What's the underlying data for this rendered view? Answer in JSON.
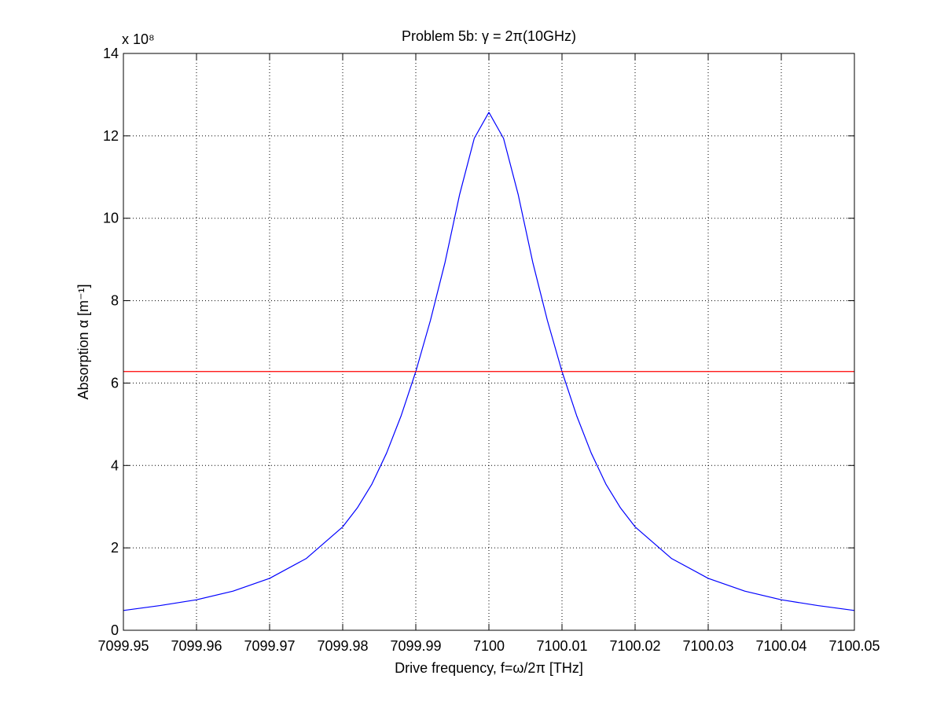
{
  "chart_data": {
    "type": "line",
    "title": "Problem 5b: γ = 2π(10GHz)",
    "xlabel": "Drive frequency, f=ω/2π [THz]",
    "ylabel": "Absorption α [m⁻¹]",
    "y_multiplier_label": "x 10⁸",
    "xlim": [
      7099.95,
      7100.05
    ],
    "ylim": [
      0,
      14
    ],
    "y_units_scale": 100000000.0,
    "xticks": [
      7099.95,
      7099.96,
      7099.97,
      7099.98,
      7099.99,
      7100,
      7100.01,
      7100.02,
      7100.03,
      7100.04,
      7100.05
    ],
    "xtick_labels": [
      "7099.95",
      "7099.96",
      "7099.97",
      "7099.98",
      "7099.99",
      "7100",
      "7100.01",
      "7100.02",
      "7100.03",
      "7100.04",
      "7100.05"
    ],
    "yticks": [
      0,
      2,
      4,
      6,
      8,
      10,
      12,
      14
    ],
    "ytick_labels": [
      "0",
      "2",
      "4",
      "6",
      "8",
      "10",
      "12",
      "14"
    ],
    "grid": true,
    "series": [
      {
        "color": "#0000ff",
        "x": [
          7099.95,
          7099.955,
          7099.96,
          7099.965,
          7099.97,
          7099.975,
          7099.98,
          7099.982,
          7099.984,
          7099.986,
          7099.988,
          7099.99,
          7099.992,
          7099.994,
          7099.996,
          7099.998,
          7100,
          7100.002,
          7100.004,
          7100.006,
          7100.008,
          7100.01,
          7100.012,
          7100.014,
          7100.016,
          7100.018,
          7100.02,
          7100.025,
          7100.03,
          7100.035,
          7100.04,
          7100.045,
          7100.05
        ],
        "y": [
          0.48,
          0.6,
          0.74,
          0.95,
          1.26,
          1.74,
          2.51,
          2.97,
          3.55,
          4.3,
          5.21,
          6.28,
          7.52,
          8.93,
          10.58,
          11.94,
          12.57,
          11.94,
          10.58,
          8.93,
          7.52,
          6.28,
          5.21,
          4.3,
          3.55,
          2.97,
          2.51,
          1.74,
          1.26,
          0.95,
          0.74,
          0.6,
          0.48
        ]
      },
      {
        "color": "#ff0000",
        "x": [
          7099.95,
          7100.05
        ],
        "y": [
          6.28,
          6.28
        ]
      }
    ]
  }
}
